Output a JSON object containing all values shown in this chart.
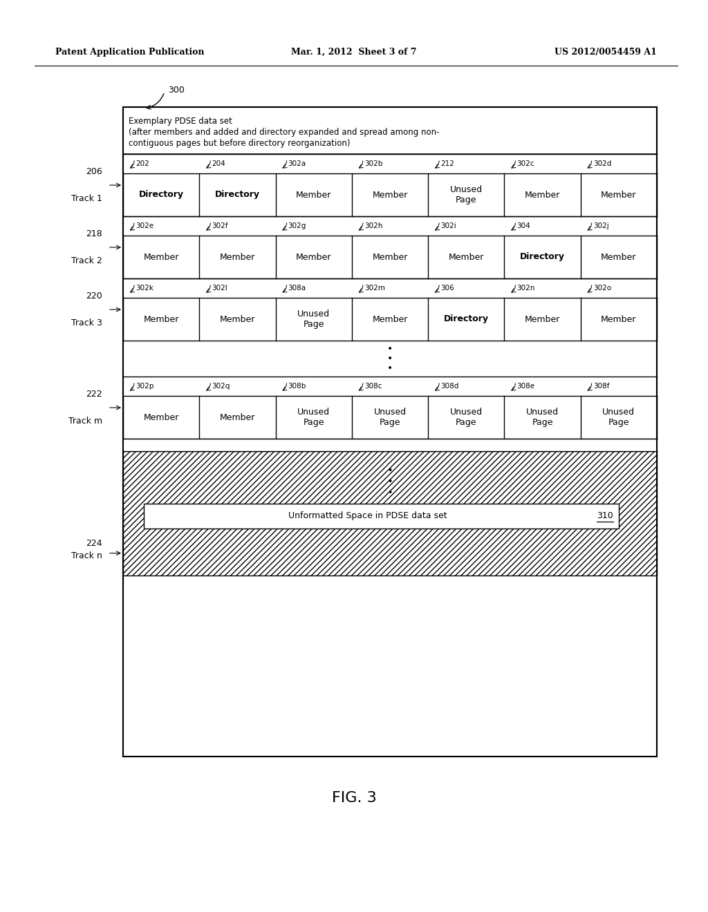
{
  "header_left": "Patent Application Publication",
  "header_mid": "Mar. 1, 2012  Sheet 3 of 7",
  "header_right": "US 2012/0054459 A1",
  "fig_label": "FIG. 3",
  "title_ref": "300",
  "title_text_line1": "Exemplary PDSE data set",
  "title_text_line2": "(after members and added and directory expanded and spread among non-",
  "title_text_line3": "contiguous pages but before directory reorganization)",
  "tracks": [
    {
      "label": "206",
      "track_name": "Track 1",
      "page_labels": [
        "202",
        "204",
        "302a",
        "302b",
        "212",
        "302c",
        "302d"
      ],
      "cells": [
        "Directory",
        "Directory",
        "Member",
        "Member",
        "Unused\nPage",
        "Member",
        "Member"
      ],
      "bold": [
        true,
        true,
        false,
        false,
        false,
        false,
        false
      ]
    },
    {
      "label": "218",
      "track_name": "Track 2",
      "page_labels": [
        "302e",
        "302f",
        "302g",
        "302h",
        "302i",
        "304",
        "302j"
      ],
      "cells": [
        "Member",
        "Member",
        "Member",
        "Member",
        "Member",
        "Directory",
        "Member"
      ],
      "bold": [
        false,
        false,
        false,
        false,
        false,
        true,
        false
      ]
    },
    {
      "label": "220",
      "track_name": "Track 3",
      "page_labels": [
        "302k",
        "302l",
        "308a",
        "302m",
        "306",
        "302n",
        "302o"
      ],
      "cells": [
        "Member",
        "Member",
        "Unused\nPage",
        "Member",
        "Directory",
        "Member",
        "Member"
      ],
      "bold": [
        false,
        false,
        false,
        false,
        true,
        false,
        false
      ]
    },
    {
      "label": "222",
      "track_name": "Track m",
      "page_labels": [
        "302p",
        "302q",
        "308b",
        "308c",
        "308d",
        "308e",
        "308f"
      ],
      "cells": [
        "Member",
        "Member",
        "Unused\nPage",
        "Unused\nPage",
        "Unused\nPage",
        "Unused\nPage",
        "Unused\nPage"
      ],
      "bold": [
        false,
        false,
        false,
        false,
        false,
        false,
        false
      ]
    }
  ],
  "unformatted_label": "224",
  "unformatted_track": "Track n",
  "unformatted_text": "Unformatted Space in PDSE data set",
  "unformatted_ref": "310"
}
